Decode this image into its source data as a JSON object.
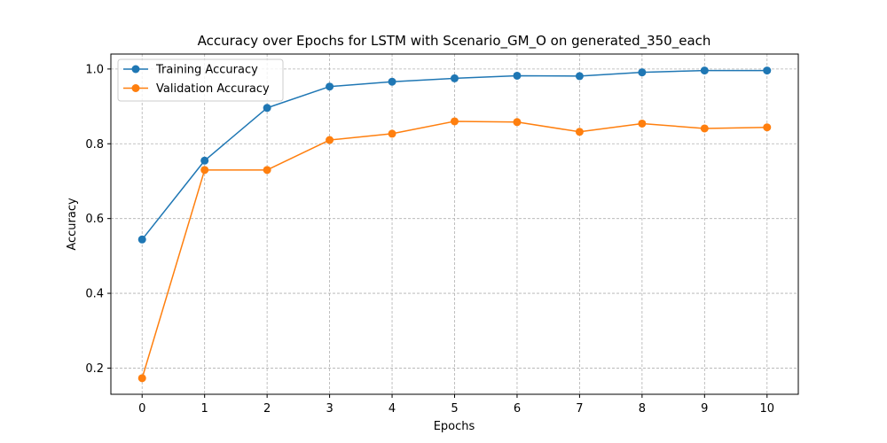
{
  "chart_data": {
    "type": "line",
    "title": "Accuracy over Epochs for LSTM with Scenario_GM_O on generated_350_each",
    "xlabel": "Epochs",
    "ylabel": "Accuracy",
    "x": [
      0,
      1,
      2,
      3,
      4,
      5,
      6,
      7,
      8,
      9,
      10
    ],
    "x_ticks": [
      "0",
      "1",
      "2",
      "3",
      "4",
      "5",
      "6",
      "7",
      "8",
      "9",
      "10"
    ],
    "y_ticks": [
      "0.2",
      "0.4",
      "0.6",
      "0.8",
      "1.0"
    ],
    "xlim": [
      -0.5,
      10.5
    ],
    "ylim": [
      0.13,
      1.04
    ],
    "grid": true,
    "legend_position": "upper-left",
    "series": [
      {
        "name": "Training Accuracy",
        "color": "#1f77b4",
        "marker": "circle",
        "values": [
          0.544,
          0.755,
          0.896,
          0.953,
          0.966,
          0.975,
          0.982,
          0.981,
          0.991,
          0.996,
          0.996
        ]
      },
      {
        "name": "Validation Accuracy",
        "color": "#ff7f0e",
        "marker": "circle",
        "values": [
          0.173,
          0.73,
          0.73,
          0.81,
          0.827,
          0.86,
          0.858,
          0.832,
          0.854,
          0.841,
          0.844
        ]
      }
    ]
  }
}
